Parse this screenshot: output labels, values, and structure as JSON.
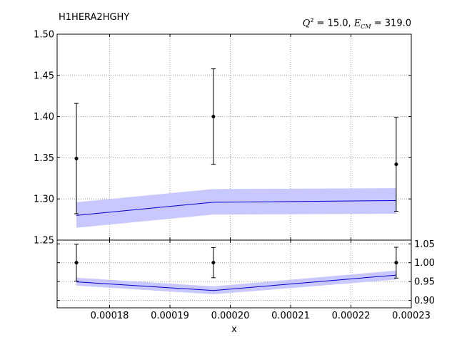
{
  "chart_data": [
    {
      "type": "line",
      "title_left": "H1HERA2HGHY",
      "title_right": {
        "q2_symbol": "Q",
        "q2_exponent": "2",
        "q2_text": "= 15.0,",
        "ecm_symbol": "E",
        "ecm_subscript": "CM",
        "ecm_text": "= 319.0"
      },
      "xlim": [
        0.0001713,
        0.00023
      ],
      "ylim": [
        1.25,
        1.5
      ],
      "yticks": [
        "1.25",
        "1.30",
        "1.35",
        "1.40",
        "1.45",
        "1.50"
      ],
      "yticks_values": [
        1.25,
        1.3,
        1.35,
        1.4,
        1.45,
        1.5
      ],
      "grid": true,
      "data_points": {
        "x": [
          0.0001745,
          0.0001972,
          0.0002275
        ],
        "y": [
          1.349,
          1.4,
          1.342
        ],
        "err": [
          0.067,
          0.058,
          0.057
        ]
      },
      "theory": {
        "x": [
          0.0001745,
          0.0001972,
          0.0002275
        ],
        "y": [
          1.28,
          1.296,
          1.298
        ],
        "band_low": [
          1.265,
          1.281,
          1.282
        ],
        "band_high": [
          1.296,
          1.312,
          1.313
        ]
      }
    },
    {
      "type": "line",
      "xlabel": "x",
      "xlim": [
        0.0001713,
        0.00023
      ],
      "ylim": [
        0.88,
        1.06
      ],
      "xticks": [
        "0.00018",
        "0.00019",
        "0.00020",
        "0.00021",
        "0.00022",
        "0.00023"
      ],
      "xticks_values": [
        0.00018,
        0.00019,
        0.0002,
        0.00021,
        0.00022,
        0.00023
      ],
      "yticks": [
        "0.90",
        "0.95",
        "1.00",
        "1.05"
      ],
      "yticks_values": [
        0.9,
        0.95,
        1.0,
        1.05
      ],
      "grid": true,
      "data_points": {
        "x": [
          0.0001745,
          0.0001972,
          0.0002275
        ],
        "y": [
          1.0,
          1.0,
          1.0
        ],
        "err": [
          0.049,
          0.04,
          0.041
        ]
      },
      "theory": {
        "x": [
          0.0001745,
          0.0001972,
          0.0002275
        ],
        "y": [
          0.949,
          0.926,
          0.967
        ],
        "band_low": [
          0.939,
          0.916,
          0.955
        ],
        "band_high": [
          0.96,
          0.937,
          0.979
        ]
      }
    }
  ],
  "colors": {
    "band": "#c8c8ff",
    "line": "#0000cc",
    "points": "#000000",
    "grid": "#888888"
  }
}
